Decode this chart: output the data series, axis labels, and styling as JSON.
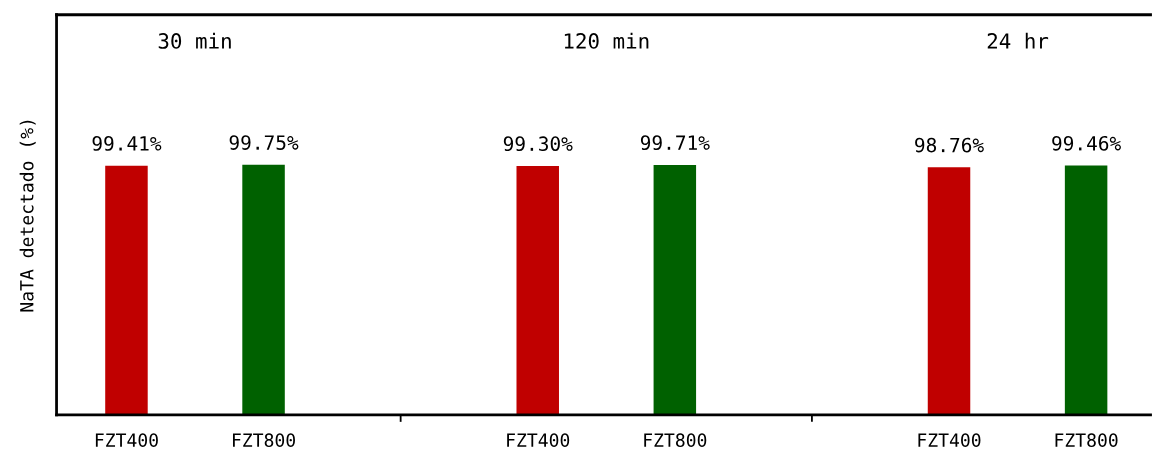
{
  "chart_data": {
    "type": "bar",
    "ylabel": "NaTA detectado (%)",
    "categories": [
      "FZT400",
      "FZT800",
      null,
      "FZT400",
      "FZT800",
      null,
      "FZT400",
      "FZT800"
    ],
    "values": [
      99.41,
      99.75,
      null,
      99.3,
      99.71,
      null,
      98.76,
      99.46
    ],
    "colors": [
      "#c00000",
      "#006100",
      "#000000",
      "#c00000",
      "#006100",
      "#000000",
      "#c00000",
      "#006100"
    ],
    "value_labels": [
      "99.41%",
      "99.75%",
      null,
      "99.30%",
      "99.71%",
      null,
      "98.76%",
      "99.46%"
    ],
    "annotations": [
      "30 min",
      "120 min",
      "24 hr"
    ],
    "tick_labels": "x",
    "grid": false,
    "legend": false
  }
}
